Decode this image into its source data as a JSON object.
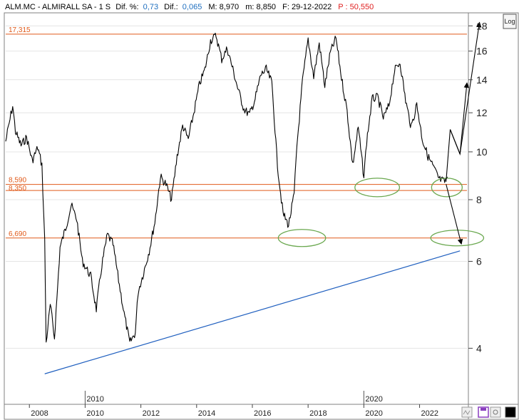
{
  "header": {
    "symbol": "ALM.MC - ALMIRALL SA -  1 S",
    "dif_pct_label": "Dif. %:",
    "dif_pct_value": "0,73",
    "dif_label": "Dif.:",
    "dif_value": "0,065",
    "max_label": "M: 8,970",
    "min_label": "m: 8,850",
    "date_label": "F: 29-12-2022",
    "price_label": "P : 50,550"
  },
  "toolbar": {
    "log_label": "Log"
  },
  "colors": {
    "price": "#000000",
    "level": "#e05a1a",
    "trend": "#1f5fbf",
    "ellipse": "#6aa84f",
    "header_value": "#1f6fbf",
    "header_price": "#e02020",
    "grid": "#e4e4e4"
  },
  "chart_data": {
    "type": "line",
    "scale": "log",
    "ylim": [
      3.1,
      19.0
    ],
    "xlim": [
      2007.15,
      2023.7
    ],
    "y_ticks": [
      4,
      6,
      8,
      10,
      12,
      14,
      16,
      18
    ],
    "x_ticks": [
      "2008",
      "2010",
      "2012",
      "2014",
      "2016",
      "2018",
      "2020",
      "2022"
    ],
    "x_tick_years": [
      2008,
      2010,
      2012,
      2014,
      2016,
      2018,
      2020,
      2022
    ],
    "period_markers": [
      {
        "label": "2010",
        "x": 2010
      },
      {
        "label": "2020",
        "x": 2020
      }
    ],
    "series": [
      {
        "x": [
          2007.15,
          2007.4,
          2007.5,
          2007.7,
          2007.9,
          2008.1,
          2008.3,
          2008.45,
          2008.55,
          2008.6,
          2008.75,
          2008.9,
          2009.1,
          2009.3,
          2009.5,
          2009.7,
          2009.9,
          2010.2,
          2010.4,
          2010.6,
          2010.8,
          2011.0,
          2011.2,
          2011.4,
          2011.6,
          2011.8,
          2011.9,
          2012.1,
          2012.3,
          2012.5,
          2012.7,
          2012.9,
          2013.1,
          2013.3,
          2013.5,
          2013.7,
          2013.9,
          2014.1,
          2014.3,
          2014.5,
          2014.7,
          2014.9,
          2015.1,
          2015.3,
          2015.5,
          2015.7,
          2015.9,
          2016.1,
          2016.3,
          2016.5,
          2016.7,
          2016.9,
          2017.1,
          2017.3,
          2017.5,
          2017.6,
          2017.8,
          2018.0,
          2018.2,
          2018.4,
          2018.6,
          2018.8,
          2019.0,
          2019.2,
          2019.4,
          2019.6,
          2019.8,
          2020.0,
          2020.1,
          2020.3,
          2020.5,
          2020.7,
          2020.9,
          2021.1,
          2021.3,
          2021.5,
          2021.7,
          2021.9,
          2022.1,
          2022.3,
          2022.5,
          2022.7,
          2022.9,
          2023.0
        ],
        "y": [
          10.5,
          12.4,
          11.0,
          10.3,
          10.7,
          9.6,
          10.2,
          9.4,
          6.6,
          4.1,
          4.9,
          4.2,
          6.4,
          7.0,
          7.8,
          7.3,
          6.0,
          5.6,
          4.8,
          5.9,
          6.8,
          6.5,
          5.5,
          4.7,
          4.1,
          4.3,
          5.2,
          5.7,
          6.3,
          7.2,
          8.9,
          8.6,
          8.0,
          9.8,
          11.3,
          10.6,
          12.0,
          13.7,
          14.7,
          16.8,
          17.2,
          15.4,
          16.2,
          14.7,
          13.3,
          12.2,
          11.9,
          12.8,
          14.3,
          14.7,
          13.8,
          9.4,
          7.5,
          7.1,
          8.2,
          10.3,
          13.9,
          16.9,
          14.2,
          16.6,
          13.6,
          15.9,
          17.0,
          14.1,
          12.1,
          9.4,
          11.2,
          8.9,
          10.5,
          12.8,
          12.9,
          11.7,
          12.4,
          14.6,
          15.2,
          12.7,
          11.2,
          12.5,
          10.6,
          9.8,
          9.3,
          8.8,
          8.7,
          8.9
        ]
      }
    ],
    "levels": [
      {
        "label": "17,315",
        "y": 17.315
      },
      {
        "label": "8,590",
        "y": 8.59
      },
      {
        "label": "8,350",
        "y": 8.35
      },
      {
        "label": "6,690",
        "y": 6.69
      }
    ],
    "trendline": {
      "x": [
        2008.55,
        2023.45
      ],
      "y": [
        3.55,
        6.3
      ]
    },
    "projections": [
      {
        "x": [
          2022.95,
          2023.1,
          2023.45,
          2023.7
        ],
        "y": [
          8.7,
          11.1,
          9.9,
          13.8
        ]
      },
      {
        "x": [
          2023.1,
          2023.45,
          2024.15
        ],
        "y": [
          11.1,
          9.9,
          18.3
        ]
      },
      {
        "x": [
          2022.95,
          2023.5
        ],
        "y": [
          8.6,
          6.5
        ]
      }
    ],
    "ellipses": [
      {
        "cx": 2017.78,
        "cy": 6.69,
        "rx": 0.85,
        "ry": 12
      },
      {
        "cx": 2020.48,
        "cy": 8.47,
        "rx": 0.8,
        "ry": 13
      },
      {
        "cx": 2022.98,
        "cy": 8.47,
        "rx": 0.55,
        "ry": 13
      },
      {
        "cx": 2023.35,
        "cy": 6.69,
        "rx": 0.95,
        "ry": 11
      }
    ]
  }
}
